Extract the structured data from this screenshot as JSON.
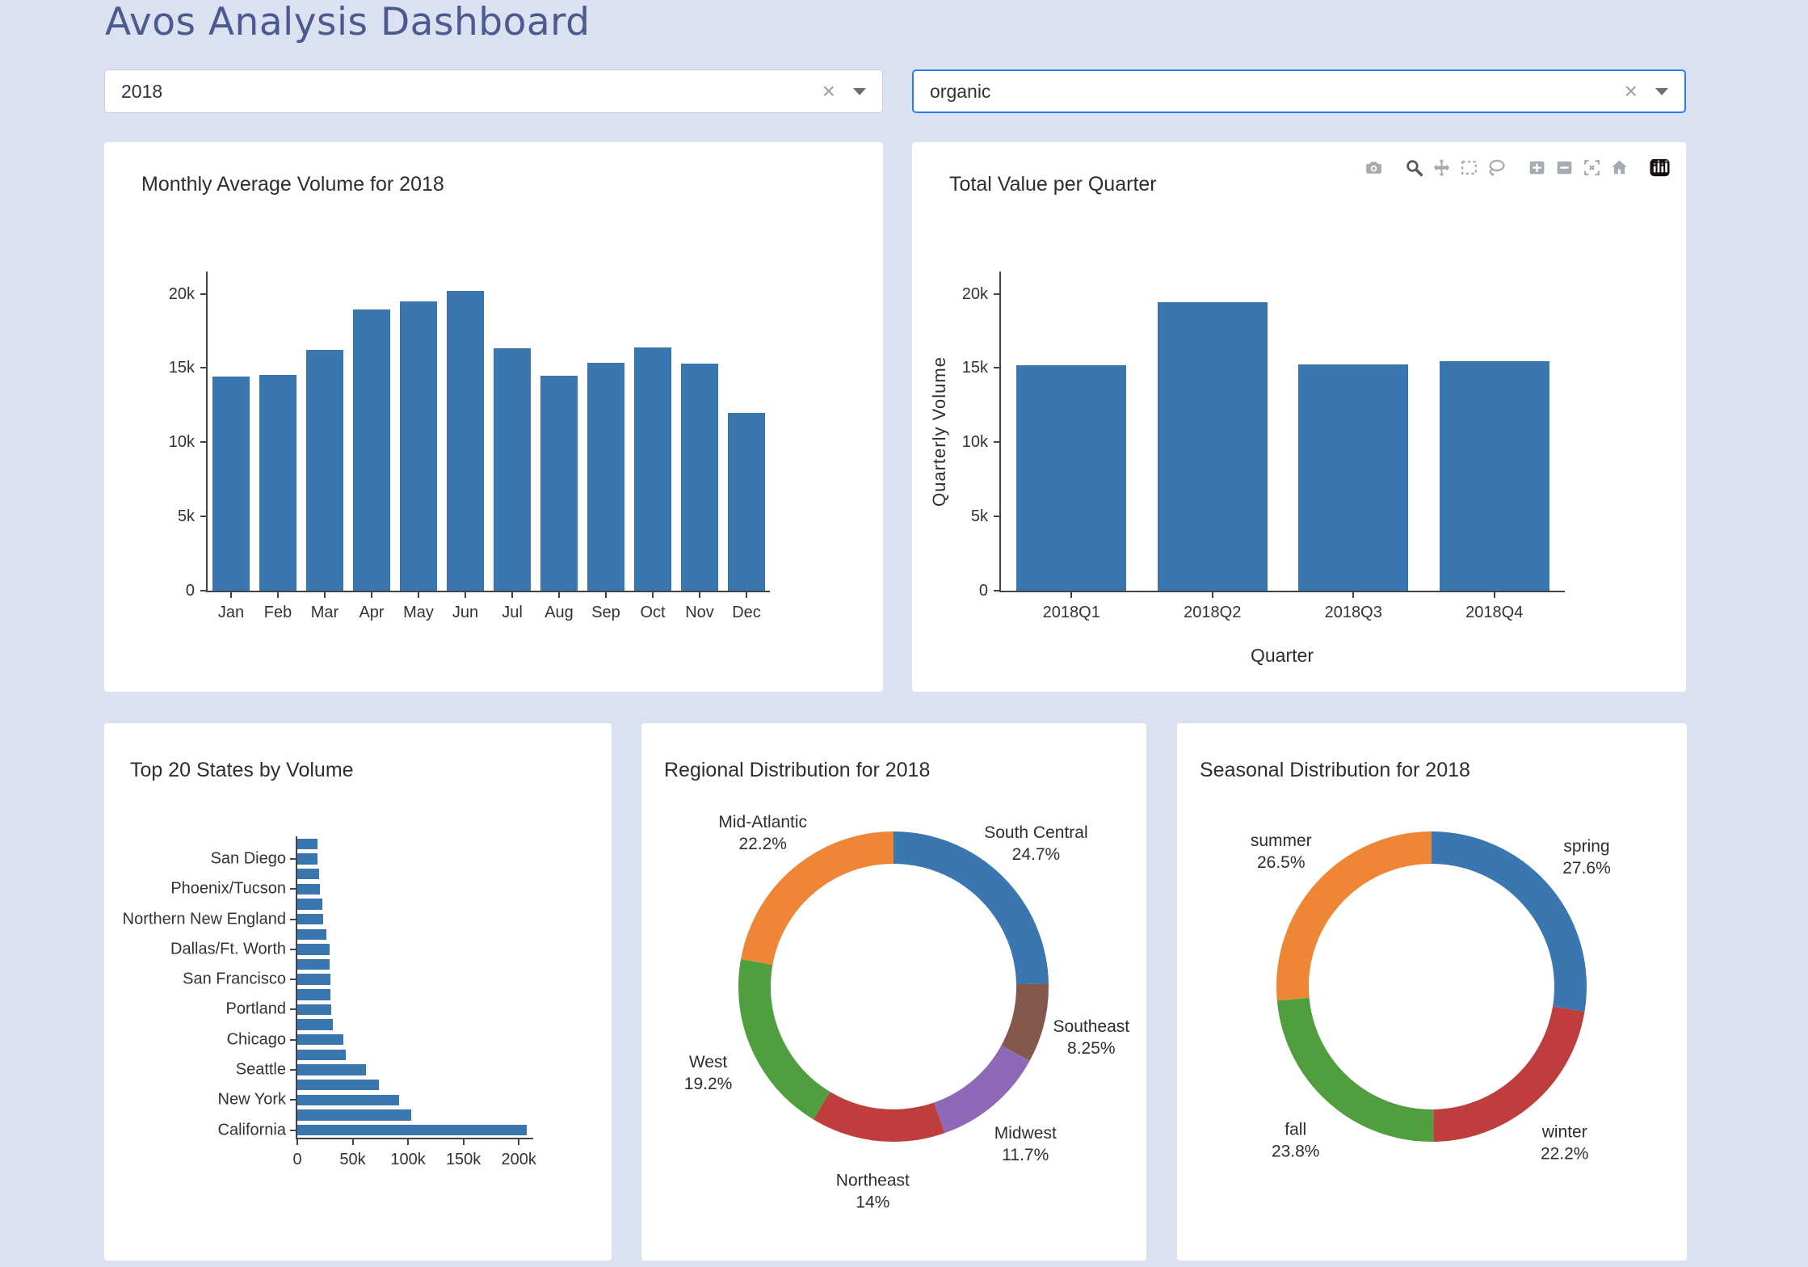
{
  "page": {
    "title": "Avos Analysis Dashboard"
  },
  "filters": {
    "year": {
      "value": "2018",
      "clear_label": "×"
    },
    "type": {
      "value": "organic",
      "clear_label": "×"
    }
  },
  "modebar": {
    "buttons": [
      "download-plot",
      "zoom",
      "pan",
      "box-select",
      "lasso-select",
      "zoom-in",
      "zoom-out",
      "autoscale",
      "reset-axes",
      "plotly-logo"
    ],
    "active": "zoom"
  },
  "colors": {
    "bar_blue": "#3A76AF",
    "page_bg": "#DAE1F0",
    "title_text": "#4C5A8F",
    "focus_border": "#2A7BF6"
  },
  "chart_data": [
    {
      "type": "bar",
      "title": "Monthly Average Volume for 2018",
      "categories": [
        "Jan",
        "Feb",
        "Mar",
        "Apr",
        "May",
        "Jun",
        "Jul",
        "Aug",
        "Sep",
        "Oct",
        "Nov",
        "Dec"
      ],
      "values": [
        14400,
        14550,
        16200,
        18950,
        19500,
        20200,
        16350,
        14500,
        15350,
        16400,
        15300,
        12000
      ],
      "xlabel": "",
      "ylabel": "",
      "ylim": [
        0,
        21500
      ],
      "yticks": [
        {
          "value": 0,
          "label": "0"
        },
        {
          "value": 5000,
          "label": "5k"
        },
        {
          "value": 10000,
          "label": "10k"
        },
        {
          "value": 15000,
          "label": "15k"
        },
        {
          "value": 20000,
          "label": "20k"
        }
      ],
      "bar_color": "#3A76AF",
      "bar_width": 0.8,
      "grid": false
    },
    {
      "type": "bar",
      "title": "Total Value per Quarter",
      "categories": [
        "2018Q1",
        "2018Q2",
        "2018Q3",
        "2018Q4"
      ],
      "values": [
        15200,
        19450,
        15250,
        15450
      ],
      "xlabel": "Quarter",
      "ylabel": "Quarterly Volume",
      "ylim": [
        0,
        21500
      ],
      "yticks": [
        {
          "value": 0,
          "label": "0"
        },
        {
          "value": 5000,
          "label": "5k"
        },
        {
          "value": 10000,
          "label": "10k"
        },
        {
          "value": 15000,
          "label": "15k"
        },
        {
          "value": 20000,
          "label": "20k"
        }
      ],
      "bar_color": "#3A76AF",
      "bar_width": 0.78,
      "grid": false
    },
    {
      "type": "bar",
      "orientation": "horizontal",
      "title": "Top 20 States by Volume",
      "note": "20 bars top-to-bottom; only every other category label shown on axis",
      "items": [
        {
          "label": "",
          "value": 18300
        },
        {
          "label": "San Diego",
          "value": 18600
        },
        {
          "label": "",
          "value": 20000
        },
        {
          "label": "Phoenix/Tucson",
          "value": 20400
        },
        {
          "label": "",
          "value": 22300
        },
        {
          "label": "Northern New England",
          "value": 23300
        },
        {
          "label": "",
          "value": 26000
        },
        {
          "label": "Dallas/Ft. Worth",
          "value": 29000
        },
        {
          "label": "",
          "value": 29400
        },
        {
          "label": "San Francisco",
          "value": 29700
        },
        {
          "label": "",
          "value": 30000
        },
        {
          "label": "Portland",
          "value": 30400
        },
        {
          "label": "",
          "value": 32000
        },
        {
          "label": "Chicago",
          "value": 41300
        },
        {
          "label": "",
          "value": 44000
        },
        {
          "label": "Seattle",
          "value": 62000
        },
        {
          "label": "",
          "value": 74000
        },
        {
          "label": "New York",
          "value": 92000
        },
        {
          "label": "",
          "value": 103000
        },
        {
          "label": "California",
          "value": 207000
        }
      ],
      "xlim": [
        0,
        213000
      ],
      "xticks": [
        {
          "value": 0,
          "label": "0"
        },
        {
          "value": 50000,
          "label": "50k"
        },
        {
          "value": 100000,
          "label": "100k"
        },
        {
          "value": 150000,
          "label": "150k"
        },
        {
          "value": 200000,
          "label": "200k"
        }
      ],
      "bar_color": "#3A76AF",
      "bar_width": 0.72,
      "grid": false
    },
    {
      "type": "pie",
      "hole": true,
      "title": "Regional Distribution for 2018",
      "slices": [
        {
          "label": "South Central",
          "pct": 24.7,
          "pct_label": "24.7%",
          "color": "#3A76AF"
        },
        {
          "label": "Southeast",
          "pct": 8.25,
          "pct_label": "8.25%",
          "color": "#85584E"
        },
        {
          "label": "Midwest",
          "pct": 11.7,
          "pct_label": "11.7%",
          "color": "#8D69B8"
        },
        {
          "label": "Northeast",
          "pct": 14.0,
          "pct_label": "14%",
          "color": "#C03D3D"
        },
        {
          "label": "West",
          "pct": 19.2,
          "pct_label": "19.2%",
          "color": "#519E3E"
        },
        {
          "label": "Mid-Atlantic",
          "pct": 22.2,
          "pct_label": "22.2%",
          "color": "#EF8636"
        }
      ],
      "start_angle_deg": 0,
      "direction": "clockwise",
      "legend": false
    },
    {
      "type": "pie",
      "hole": true,
      "title": "Seasonal Distribution for 2018",
      "slices": [
        {
          "label": "spring",
          "pct": 27.6,
          "pct_label": "27.6%",
          "color": "#3A76AF"
        },
        {
          "label": "winter",
          "pct": 22.2,
          "pct_label": "22.2%",
          "color": "#C03D3D"
        },
        {
          "label": "fall",
          "pct": 23.8,
          "pct_label": "23.8%",
          "color": "#519E3E"
        },
        {
          "label": "summer",
          "pct": 26.5,
          "pct_label": "26.5%",
          "color": "#EF8636"
        }
      ],
      "start_angle_deg": 0,
      "direction": "clockwise",
      "legend": false
    }
  ]
}
